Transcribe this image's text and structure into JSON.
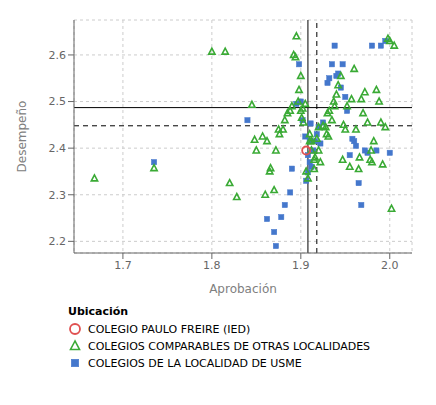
{
  "chart_data": {
    "type": "scatter",
    "xlabel": "Aprobación",
    "ylabel": "Desempeño",
    "legend_title": "Ubicación",
    "grid": true,
    "legend": "bottom",
    "xlim": [
      1.645,
      2.025
    ],
    "ylim": [
      2.175,
      2.675
    ],
    "xticks": [
      1.7,
      1.8,
      1.9,
      {
        "value": 2.0,
        "label": "2.0"
      }
    ],
    "yticks": [
      2.2,
      2.3,
      2.4,
      2.5,
      2.6
    ],
    "hlines": [
      {
        "value": 2.487,
        "line_style": "solid",
        "color": "#000000"
      },
      {
        "value": 2.448,
        "line_style": "dashed",
        "color": "#000000"
      }
    ],
    "vlines": [
      {
        "value": 1.908,
        "line_style": "solid",
        "color": "#000000"
      },
      {
        "value": 1.918,
        "line_style": "dashed",
        "color": "#000000"
      }
    ],
    "series": [
      {
        "name": "COLEGIO PAULO FREIRE (IED)",
        "color": "#e05050",
        "marker": "circle_open",
        "values": [
          [
            1.906,
            2.395
          ]
        ]
      },
      {
        "name": "COLEGIOS COMPARABLES DE OTRAS LOCALIDADES",
        "color": "#3aaa35",
        "marker": "triangle_open",
        "values": [
          [
            1.668,
            2.335
          ],
          [
            1.735,
            2.357
          ],
          [
            1.8,
            2.607
          ],
          [
            1.815,
            2.607
          ],
          [
            1.82,
            2.325
          ],
          [
            1.828,
            2.295
          ],
          [
            1.845,
            2.493
          ],
          [
            1.848,
            2.418
          ],
          [
            1.85,
            2.395
          ],
          [
            1.857,
            2.425
          ],
          [
            1.86,
            2.3
          ],
          [
            1.862,
            2.415
          ],
          [
            1.865,
            2.35
          ],
          [
            1.866,
            2.357
          ],
          [
            1.87,
            2.31
          ],
          [
            1.872,
            2.395
          ],
          [
            1.875,
            2.44
          ],
          [
            1.876,
            2.43
          ],
          [
            1.88,
            2.44
          ],
          [
            1.882,
            2.46
          ],
          [
            1.885,
            2.475
          ],
          [
            1.888,
            2.48
          ],
          [
            1.89,
            2.49
          ],
          [
            1.892,
            2.6
          ],
          [
            1.894,
            2.595
          ],
          [
            1.895,
            2.64
          ],
          [
            1.897,
            2.5
          ],
          [
            1.898,
            2.525
          ],
          [
            1.9,
            2.555
          ],
          [
            1.9,
            2.48
          ],
          [
            1.901,
            2.465
          ],
          [
            1.902,
            2.485
          ],
          [
            1.903,
            2.455
          ],
          [
            1.905,
            2.495
          ],
          [
            1.906,
            2.35
          ],
          [
            1.908,
            2.335
          ],
          [
            1.91,
            2.43
          ],
          [
            1.91,
            2.415
          ],
          [
            1.912,
            2.415
          ],
          [
            1.912,
            2.395
          ],
          [
            1.915,
            2.375
          ],
          [
            1.915,
            2.355
          ],
          [
            1.916,
            2.38
          ],
          [
            1.918,
            2.42
          ],
          [
            1.92,
            2.445
          ],
          [
            1.92,
            2.395
          ],
          [
            1.922,
            2.37
          ],
          [
            1.925,
            2.448
          ],
          [
            1.928,
            2.445
          ],
          [
            1.929,
            2.43
          ],
          [
            1.93,
            2.475
          ],
          [
            1.931,
            2.425
          ],
          [
            1.932,
            2.48
          ],
          [
            1.935,
            2.46
          ],
          [
            1.937,
            2.5
          ],
          [
            1.938,
            2.49
          ],
          [
            1.94,
            2.515
          ],
          [
            1.942,
            2.535
          ],
          [
            1.945,
            2.555
          ],
          [
            1.947,
            2.375
          ],
          [
            1.948,
            2.45
          ],
          [
            1.95,
            2.44
          ],
          [
            1.952,
            2.49
          ],
          [
            1.955,
            2.36
          ],
          [
            1.957,
            2.505
          ],
          [
            1.96,
            2.57
          ],
          [
            1.962,
            2.44
          ],
          [
            1.965,
            2.355
          ],
          [
            1.966,
            2.38
          ],
          [
            1.968,
            2.505
          ],
          [
            1.97,
            2.475
          ],
          [
            1.972,
            2.52
          ],
          [
            1.975,
            2.455
          ],
          [
            1.978,
            2.375
          ],
          [
            1.979,
            2.395
          ],
          [
            1.98,
            2.37
          ],
          [
            1.982,
            2.415
          ],
          [
            1.985,
            2.525
          ],
          [
            1.988,
            2.5
          ],
          [
            1.99,
            2.455
          ],
          [
            1.992,
            2.365
          ],
          [
            1.995,
            2.445
          ],
          [
            1.998,
            2.635
          ],
          [
            2.0,
            2.63
          ],
          [
            2.002,
            2.27
          ],
          [
            2.005,
            2.62
          ]
        ]
      },
      {
        "name": "COLEGIOS DE LA LOCALIDAD DE USME",
        "color": "#4477cc",
        "marker": "square",
        "values": [
          [
            1.735,
            2.37
          ],
          [
            1.84,
            2.46
          ],
          [
            1.862,
            2.248
          ],
          [
            1.87,
            2.22
          ],
          [
            1.872,
            2.19
          ],
          [
            1.878,
            2.252
          ],
          [
            1.882,
            2.278
          ],
          [
            1.888,
            2.305
          ],
          [
            1.89,
            2.356
          ],
          [
            1.895,
            2.495
          ],
          [
            1.898,
            2.58
          ],
          [
            1.9,
            2.5
          ],
          [
            1.902,
            2.46
          ],
          [
            1.905,
            2.425
          ],
          [
            1.906,
            2.33
          ],
          [
            1.908,
            2.348
          ],
          [
            1.908,
            2.385
          ],
          [
            1.91,
            2.37
          ],
          [
            1.91,
            2.415
          ],
          [
            1.911,
            2.453
          ],
          [
            1.912,
            2.36
          ],
          [
            1.914,
            2.395
          ],
          [
            1.916,
            2.415
          ],
          [
            1.918,
            2.43
          ],
          [
            1.92,
            2.445
          ],
          [
            1.922,
            2.41
          ],
          [
            1.925,
            2.455
          ],
          [
            1.93,
            2.54
          ],
          [
            1.932,
            2.55
          ],
          [
            1.935,
            2.58
          ],
          [
            1.938,
            2.62
          ],
          [
            1.94,
            2.555
          ],
          [
            1.942,
            2.56
          ],
          [
            1.945,
            2.53
          ],
          [
            1.947,
            2.58
          ],
          [
            1.95,
            2.51
          ],
          [
            1.952,
            2.48
          ],
          [
            1.955,
            2.385
          ],
          [
            1.958,
            2.42
          ],
          [
            1.96,
            2.415
          ],
          [
            1.962,
            2.405
          ],
          [
            1.965,
            2.325
          ],
          [
            1.968,
            2.278
          ],
          [
            1.972,
            2.395
          ],
          [
            1.975,
            2.39
          ],
          [
            1.98,
            2.62
          ],
          [
            1.985,
            2.395
          ],
          [
            1.99,
            2.62
          ],
          [
            1.995,
            2.63
          ],
          [
            2.0,
            2.39
          ]
        ]
      }
    ]
  }
}
